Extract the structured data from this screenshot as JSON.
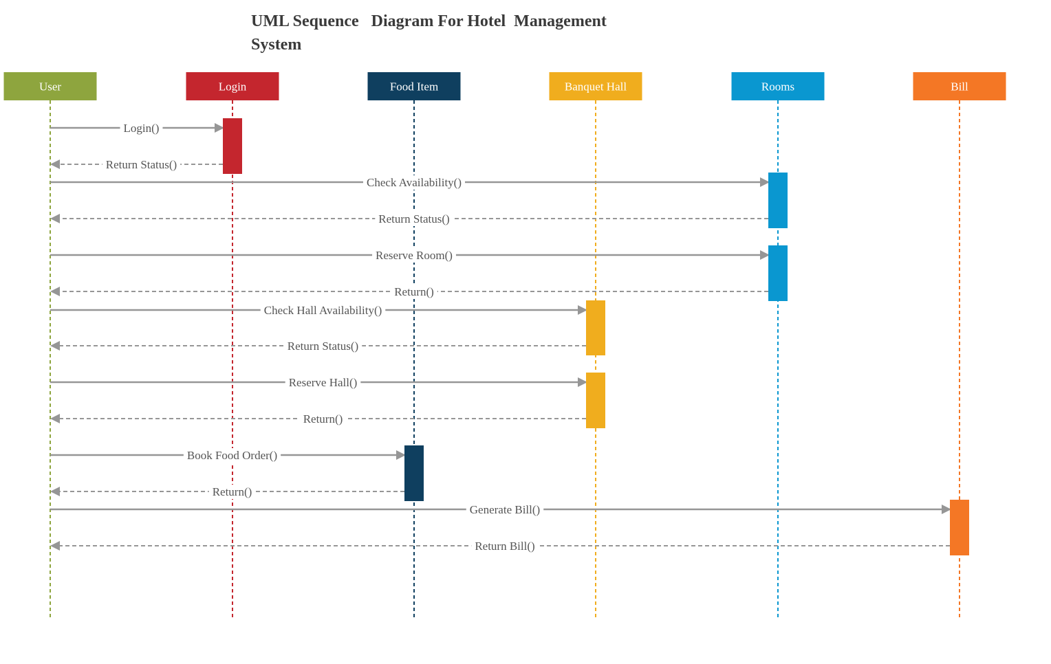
{
  "title": "UML Sequence   Diagram For Hotel  Management System",
  "actors": [
    {
      "id": "user",
      "label": "User",
      "color": "#8ea53e"
    },
    {
      "id": "login",
      "label": "Login",
      "color": "#c4262e"
    },
    {
      "id": "food",
      "label": "Food Item",
      "color": "#0f3f5f"
    },
    {
      "id": "banquet",
      "label": "Banquet  Hall",
      "color": "#f0ad1e"
    },
    {
      "id": "rooms",
      "label": "Rooms",
      "color": "#0a97d0"
    },
    {
      "id": "bill",
      "label": "Bill",
      "color": "#f47725"
    }
  ],
  "messages": [
    {
      "label": "Login()",
      "from": "user",
      "to": "login",
      "style": "solid"
    },
    {
      "label": "Return  Status()",
      "from": "login",
      "to": "user",
      "style": "dashed"
    },
    {
      "label": "Check  Availability()",
      "from": "user",
      "to": "rooms",
      "style": "solid"
    },
    {
      "label": "Return  Status()",
      "from": "rooms",
      "to": "user",
      "style": "dashed"
    },
    {
      "label": "Reserve  Room()",
      "from": "user",
      "to": "rooms",
      "style": "solid"
    },
    {
      "label": "Return()",
      "from": "rooms",
      "to": "user",
      "style": "dashed"
    },
    {
      "label": "Check  Hall Availability()",
      "from": "user",
      "to": "banquet",
      "style": "solid"
    },
    {
      "label": "Return  Status()",
      "from": "banquet",
      "to": "user",
      "style": "dashed"
    },
    {
      "label": "Reserve  Hall()",
      "from": "user",
      "to": "banquet",
      "style": "solid"
    },
    {
      "label": "Return()",
      "from": "banquet",
      "to": "user",
      "style": "dashed"
    },
    {
      "label": "Book Food Order()",
      "from": "user",
      "to": "food",
      "style": "solid"
    },
    {
      "label": "Return()",
      "from": "food",
      "to": "user",
      "style": "dashed"
    },
    {
      "label": "Generate   Bill()",
      "from": "user",
      "to": "bill",
      "style": "solid"
    },
    {
      "label": "Return  Bill()",
      "from": "bill",
      "to": "user",
      "style": "dashed"
    }
  ],
  "activations": [
    {
      "actor": "login",
      "from_message": 0,
      "to_message": 1
    },
    {
      "actor": "rooms",
      "from_message": 2,
      "to_message": 3
    },
    {
      "actor": "rooms",
      "from_message": 4,
      "to_message": 5
    },
    {
      "actor": "banquet",
      "from_message": 6,
      "to_message": 7
    },
    {
      "actor": "banquet",
      "from_message": 8,
      "to_message": 9
    },
    {
      "actor": "food",
      "from_message": 10,
      "to_message": 11
    },
    {
      "actor": "bill",
      "from_message": 12,
      "to_message": 13
    }
  ],
  "colors": {
    "arrow": "#969696",
    "title": "#3a3a3a",
    "label": "#555555"
  }
}
